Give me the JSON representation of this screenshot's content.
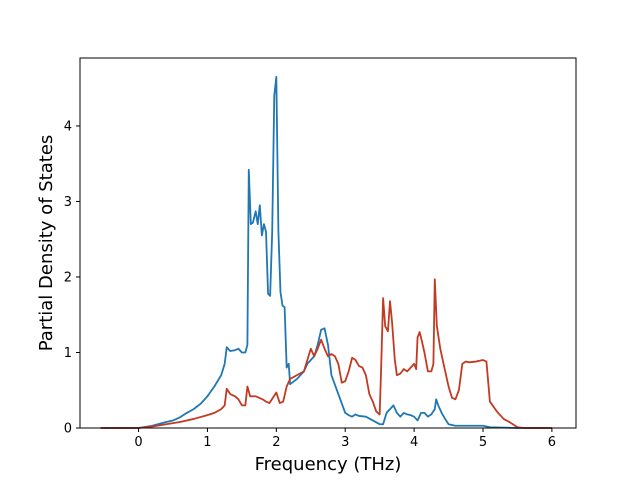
{
  "chart_data": {
    "type": "line",
    "xlabel": "Frequency (THz)",
    "ylabel": "Partial Density of States",
    "xlim": [
      -0.85,
      6.35
    ],
    "ylim": [
      0,
      4.9
    ],
    "xticks": [
      0,
      1,
      2,
      3,
      4,
      5,
      6
    ],
    "yticks": [
      0,
      1,
      2,
      3,
      4
    ],
    "grid": false,
    "series": [
      {
        "color": "#1f77b4",
        "points": [
          [
            -0.55,
            0
          ],
          [
            0,
            0
          ],
          [
            0.2,
            0.03
          ],
          [
            0.4,
            0.08
          ],
          [
            0.5,
            0.1
          ],
          [
            0.6,
            0.14
          ],
          [
            0.7,
            0.2
          ],
          [
            0.8,
            0.25
          ],
          [
            0.9,
            0.32
          ],
          [
            1.0,
            0.42
          ],
          [
            1.1,
            0.55
          ],
          [
            1.2,
            0.7
          ],
          [
            1.25,
            0.85
          ],
          [
            1.28,
            1.07
          ],
          [
            1.33,
            1.02
          ],
          [
            1.4,
            1.03
          ],
          [
            1.45,
            1.05
          ],
          [
            1.5,
            1.0
          ],
          [
            1.55,
            1.0
          ],
          [
            1.58,
            1.1
          ],
          [
            1.6,
            3.42
          ],
          [
            1.63,
            2.7
          ],
          [
            1.66,
            2.72
          ],
          [
            1.7,
            2.87
          ],
          [
            1.73,
            2.7
          ],
          [
            1.76,
            2.95
          ],
          [
            1.79,
            2.55
          ],
          [
            1.82,
            2.7
          ],
          [
            1.85,
            2.6
          ],
          [
            1.88,
            1.78
          ],
          [
            1.91,
            1.75
          ],
          [
            1.94,
            2.6
          ],
          [
            1.97,
            4.4
          ],
          [
            2.0,
            4.65
          ],
          [
            2.03,
            2.6
          ],
          [
            2.06,
            1.8
          ],
          [
            2.09,
            1.62
          ],
          [
            2.12,
            1.6
          ],
          [
            2.15,
            0.8
          ],
          [
            2.18,
            0.85
          ],
          [
            2.2,
            0.58
          ],
          [
            2.3,
            0.65
          ],
          [
            2.4,
            0.75
          ],
          [
            2.45,
            0.85
          ],
          [
            2.5,
            0.9
          ],
          [
            2.55,
            0.95
          ],
          [
            2.6,
            1.1
          ],
          [
            2.65,
            1.3
          ],
          [
            2.7,
            1.32
          ],
          [
            2.75,
            1.1
          ],
          [
            2.8,
            0.7
          ],
          [
            2.9,
            0.45
          ],
          [
            3.0,
            0.2
          ],
          [
            3.05,
            0.17
          ],
          [
            3.1,
            0.15
          ],
          [
            3.15,
            0.18
          ],
          [
            3.2,
            0.16
          ],
          [
            3.3,
            0.15
          ],
          [
            3.4,
            0.1
          ],
          [
            3.5,
            0.05
          ],
          [
            3.55,
            0.05
          ],
          [
            3.6,
            0.2
          ],
          [
            3.65,
            0.25
          ],
          [
            3.7,
            0.3
          ],
          [
            3.75,
            0.2
          ],
          [
            3.8,
            0.15
          ],
          [
            3.85,
            0.2
          ],
          [
            3.9,
            0.18
          ],
          [
            3.95,
            0.17
          ],
          [
            4.0,
            0.15
          ],
          [
            4.05,
            0.1
          ],
          [
            4.1,
            0.2
          ],
          [
            4.15,
            0.2
          ],
          [
            4.2,
            0.15
          ],
          [
            4.25,
            0.18
          ],
          [
            4.3,
            0.25
          ],
          [
            4.32,
            0.38
          ],
          [
            4.35,
            0.3
          ],
          [
            4.4,
            0.2
          ],
          [
            4.45,
            0.12
          ],
          [
            4.5,
            0.05
          ],
          [
            4.6,
            0.03
          ],
          [
            5.0,
            0.03
          ],
          [
            5.1,
            0.01
          ],
          [
            5.5,
            0
          ],
          [
            6.0,
            0
          ]
        ]
      },
      {
        "color": "#c23a22",
        "points": [
          [
            -0.55,
            0
          ],
          [
            0,
            0
          ],
          [
            0.2,
            0.02
          ],
          [
            0.4,
            0.05
          ],
          [
            0.6,
            0.08
          ],
          [
            0.8,
            0.12
          ],
          [
            1.0,
            0.17
          ],
          [
            1.1,
            0.2
          ],
          [
            1.2,
            0.25
          ],
          [
            1.25,
            0.3
          ],
          [
            1.28,
            0.52
          ],
          [
            1.33,
            0.45
          ],
          [
            1.4,
            0.42
          ],
          [
            1.45,
            0.38
          ],
          [
            1.5,
            0.3
          ],
          [
            1.55,
            0.3
          ],
          [
            1.58,
            0.55
          ],
          [
            1.62,
            0.42
          ],
          [
            1.7,
            0.42
          ],
          [
            1.75,
            0.4
          ],
          [
            1.8,
            0.38
          ],
          [
            1.85,
            0.35
          ],
          [
            1.9,
            0.33
          ],
          [
            1.95,
            0.4
          ],
          [
            2.0,
            0.47
          ],
          [
            2.05,
            0.33
          ],
          [
            2.1,
            0.35
          ],
          [
            2.15,
            0.55
          ],
          [
            2.2,
            0.65
          ],
          [
            2.3,
            0.7
          ],
          [
            2.4,
            0.75
          ],
          [
            2.5,
            1.05
          ],
          [
            2.55,
            0.95
          ],
          [
            2.6,
            1.05
          ],
          [
            2.65,
            1.17
          ],
          [
            2.7,
            1.05
          ],
          [
            2.75,
            0.95
          ],
          [
            2.8,
            0.98
          ],
          [
            2.85,
            0.95
          ],
          [
            2.9,
            0.85
          ],
          [
            2.95,
            0.6
          ],
          [
            3.0,
            0.62
          ],
          [
            3.05,
            0.75
          ],
          [
            3.1,
            0.93
          ],
          [
            3.15,
            0.9
          ],
          [
            3.2,
            0.82
          ],
          [
            3.25,
            0.8
          ],
          [
            3.3,
            0.7
          ],
          [
            3.35,
            0.45
          ],
          [
            3.4,
            0.35
          ],
          [
            3.45,
            0.22
          ],
          [
            3.5,
            0.18
          ],
          [
            3.52,
            0.75
          ],
          [
            3.55,
            1.72
          ],
          [
            3.58,
            1.35
          ],
          [
            3.62,
            1.28
          ],
          [
            3.65,
            1.68
          ],
          [
            3.68,
            1.4
          ],
          [
            3.72,
            0.9
          ],
          [
            3.75,
            0.7
          ],
          [
            3.8,
            0.72
          ],
          [
            3.85,
            0.78
          ],
          [
            3.9,
            0.75
          ],
          [
            3.95,
            0.8
          ],
          [
            4.0,
            0.85
          ],
          [
            4.03,
            0.78
          ],
          [
            4.05,
            1.2
          ],
          [
            4.08,
            1.27
          ],
          [
            4.1,
            1.2
          ],
          [
            4.15,
            1.0
          ],
          [
            4.2,
            0.75
          ],
          [
            4.25,
            0.75
          ],
          [
            4.28,
            0.85
          ],
          [
            4.3,
            1.97
          ],
          [
            4.33,
            1.35
          ],
          [
            4.38,
            1.05
          ],
          [
            4.42,
            0.88
          ],
          [
            4.5,
            0.55
          ],
          [
            4.55,
            0.4
          ],
          [
            4.6,
            0.38
          ],
          [
            4.65,
            0.5
          ],
          [
            4.7,
            0.85
          ],
          [
            4.75,
            0.88
          ],
          [
            4.8,
            0.87
          ],
          [
            4.9,
            0.88
          ],
          [
            5.0,
            0.9
          ],
          [
            5.05,
            0.88
          ],
          [
            5.1,
            0.35
          ],
          [
            5.2,
            0.22
          ],
          [
            5.3,
            0.12
          ],
          [
            5.4,
            0.07
          ],
          [
            5.5,
            0.01
          ],
          [
            5.6,
            0
          ],
          [
            6.0,
            0
          ]
        ]
      }
    ]
  }
}
